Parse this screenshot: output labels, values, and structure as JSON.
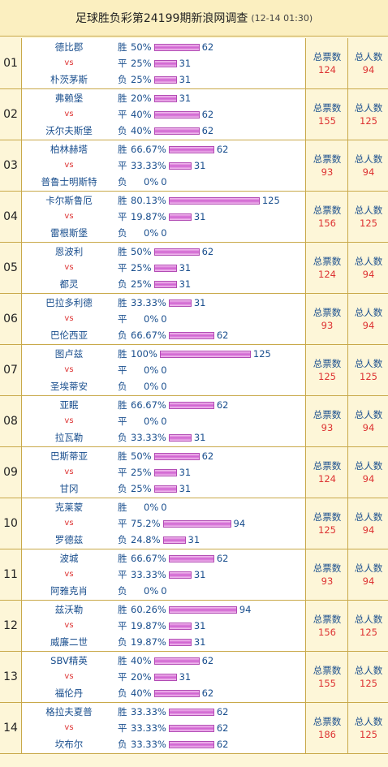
{
  "header": {
    "title": "足球胜负彩第24199期新浪网调查",
    "timestamp": "(12-14 01:30)"
  },
  "labels": {
    "vs": "vs",
    "win": "胜",
    "draw": "平",
    "loss": "负",
    "total_votes": "总票数",
    "total_people": "总人数"
  },
  "colors": {
    "team_text": "#1a4f8e",
    "vs_text": "#dd3333",
    "bar": "#cf60d0",
    "border": "#c9a94a",
    "header_bg": "#fbefc0"
  },
  "matches": [
    {
      "num": "01",
      "home": "德比郡",
      "away": "朴茨茅斯",
      "odds": [
        {
          "pct": "50%",
          "count": "62",
          "frac": 0.496
        },
        {
          "pct": "25%",
          "count": "31",
          "frac": 0.248
        },
        {
          "pct": "25%",
          "count": "31",
          "frac": 0.248
        }
      ],
      "total_votes": "124",
      "total_people": "94"
    },
    {
      "num": "02",
      "home": "弗赖堡",
      "away": "沃尔夫斯堡",
      "odds": [
        {
          "pct": "20%",
          "count": "31",
          "frac": 0.248
        },
        {
          "pct": "40%",
          "count": "62",
          "frac": 0.496
        },
        {
          "pct": "40%",
          "count": "62",
          "frac": 0.496
        }
      ],
      "total_votes": "155",
      "total_people": "125"
    },
    {
      "num": "03",
      "home": "柏林赫塔",
      "away": "普鲁士明斯特",
      "odds": [
        {
          "pct": "66.67%",
          "count": "62",
          "frac": 0.496
        },
        {
          "pct": "33.33%",
          "count": "31",
          "frac": 0.248
        },
        {
          "pct": "0%",
          "count": "0",
          "frac": 0
        }
      ],
      "total_votes": "93",
      "total_people": "94"
    },
    {
      "num": "04",
      "home": "卡尔斯鲁厄",
      "away": "雷根斯堡",
      "odds": [
        {
          "pct": "80.13%",
          "count": "125",
          "frac": 1.0
        },
        {
          "pct": "19.87%",
          "count": "31",
          "frac": 0.248
        },
        {
          "pct": "0%",
          "count": "0",
          "frac": 0
        }
      ],
      "total_votes": "156",
      "total_people": "125"
    },
    {
      "num": "05",
      "home": "恩波利",
      "away": "都灵",
      "odds": [
        {
          "pct": "50%",
          "count": "62",
          "frac": 0.496
        },
        {
          "pct": "25%",
          "count": "31",
          "frac": 0.248
        },
        {
          "pct": "25%",
          "count": "31",
          "frac": 0.248
        }
      ],
      "total_votes": "124",
      "total_people": "94"
    },
    {
      "num": "06",
      "home": "巴拉多利德",
      "away": "巴伦西亚",
      "odds": [
        {
          "pct": "33.33%",
          "count": "31",
          "frac": 0.248
        },
        {
          "pct": "0%",
          "count": "0",
          "frac": 0
        },
        {
          "pct": "66.67%",
          "count": "62",
          "frac": 0.496
        }
      ],
      "total_votes": "93",
      "total_people": "94"
    },
    {
      "num": "07",
      "home": "图卢兹",
      "away": "圣埃蒂安",
      "odds": [
        {
          "pct": "100%",
          "count": "125",
          "frac": 1.0
        },
        {
          "pct": "0%",
          "count": "0",
          "frac": 0
        },
        {
          "pct": "0%",
          "count": "0",
          "frac": 0
        }
      ],
      "total_votes": "125",
      "total_people": "125"
    },
    {
      "num": "08",
      "home": "亚眠",
      "away": "拉瓦勒",
      "odds": [
        {
          "pct": "66.67%",
          "count": "62",
          "frac": 0.496
        },
        {
          "pct": "0%",
          "count": "0",
          "frac": 0
        },
        {
          "pct": "33.33%",
          "count": "31",
          "frac": 0.248
        }
      ],
      "total_votes": "93",
      "total_people": "94"
    },
    {
      "num": "09",
      "home": "巴斯蒂亚",
      "away": "甘冈",
      "odds": [
        {
          "pct": "50%",
          "count": "62",
          "frac": 0.496
        },
        {
          "pct": "25%",
          "count": "31",
          "frac": 0.248
        },
        {
          "pct": "25%",
          "count": "31",
          "frac": 0.248
        }
      ],
      "total_votes": "124",
      "total_people": "94"
    },
    {
      "num": "10",
      "home": "克莱蒙",
      "away": "罗德兹",
      "odds": [
        {
          "pct": "0%",
          "count": "0",
          "frac": 0
        },
        {
          "pct": "75.2%",
          "count": "94",
          "frac": 0.752
        },
        {
          "pct": "24.8%",
          "count": "31",
          "frac": 0.248
        }
      ],
      "total_votes": "125",
      "total_people": "94"
    },
    {
      "num": "11",
      "home": "波城",
      "away": "阿雅克肖",
      "odds": [
        {
          "pct": "66.67%",
          "count": "62",
          "frac": 0.496
        },
        {
          "pct": "33.33%",
          "count": "31",
          "frac": 0.248
        },
        {
          "pct": "0%",
          "count": "0",
          "frac": 0
        }
      ],
      "total_votes": "93",
      "total_people": "94"
    },
    {
      "num": "12",
      "home": "兹沃勒",
      "away": "威廉二世",
      "odds": [
        {
          "pct": "60.26%",
          "count": "94",
          "frac": 0.752
        },
        {
          "pct": "19.87%",
          "count": "31",
          "frac": 0.248
        },
        {
          "pct": "19.87%",
          "count": "31",
          "frac": 0.248
        }
      ],
      "total_votes": "156",
      "total_people": "125"
    },
    {
      "num": "13",
      "home": "SBV精英",
      "away": "福伦丹",
      "odds": [
        {
          "pct": "40%",
          "count": "62",
          "frac": 0.496
        },
        {
          "pct": "20%",
          "count": "31",
          "frac": 0.248
        },
        {
          "pct": "40%",
          "count": "62",
          "frac": 0.496
        }
      ],
      "total_votes": "155",
      "total_people": "125"
    },
    {
      "num": "14",
      "home": "格拉夫夏普",
      "away": "坎布尔",
      "odds": [
        {
          "pct": "33.33%",
          "count": "62",
          "frac": 0.496
        },
        {
          "pct": "33.33%",
          "count": "62",
          "frac": 0.496
        },
        {
          "pct": "33.33%",
          "count": "62",
          "frac": 0.496
        }
      ],
      "total_votes": "186",
      "total_people": "125"
    }
  ]
}
